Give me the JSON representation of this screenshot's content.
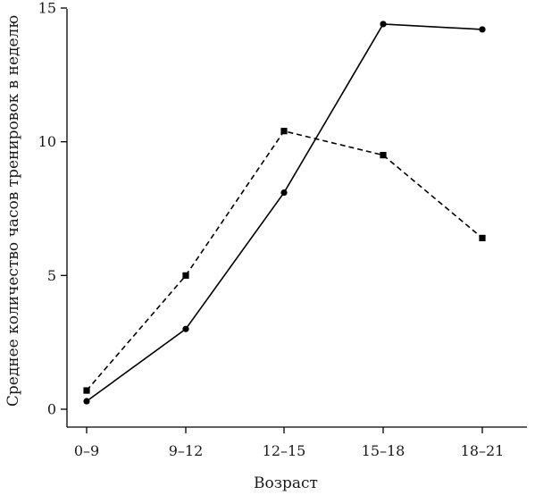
{
  "chart_data": {
    "type": "line",
    "title": "",
    "xlabel": "Возраст",
    "ylabel": "Среднее количество часов тренировок в неделю",
    "categories": [
      "0–9",
      "9–12",
      "12–15",
      "15–18",
      "18–21"
    ],
    "ylim": [
      0,
      15
    ],
    "yticks": [
      "0",
      "5",
      "10",
      "15"
    ],
    "grid": false,
    "series": [
      {
        "style": "solid",
        "marker": "circle",
        "values": [
          0.3,
          3.0,
          8.1,
          14.4,
          14.2
        ],
        "color": "#000000"
      },
      {
        "style": "dashed",
        "marker": "square",
        "values": [
          0.7,
          5.0,
          10.4,
          9.5,
          6.4
        ],
        "color": "#000000"
      }
    ]
  }
}
